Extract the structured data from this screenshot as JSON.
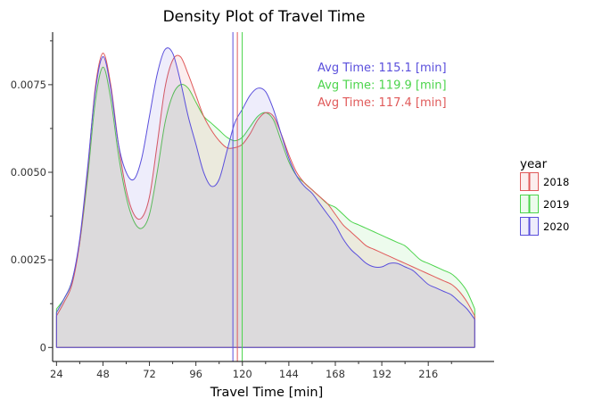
{
  "chart_data": {
    "type": "area",
    "title": "Density Plot of Travel Time",
    "xlabel": "Travel Time [min]",
    "ylabel": "",
    "xlim": [
      22,
      250
    ],
    "ylim": [
      -0.0004,
      0.009
    ],
    "x_ticks": [
      24,
      48,
      72,
      96,
      120,
      144,
      168,
      192,
      216
    ],
    "y_ticks": [
      0,
      0.0025,
      0.005,
      0.0075
    ],
    "y_tick_labels": [
      "0",
      "0.0025",
      "0.0050",
      "0.0075"
    ],
    "grid": false,
    "legend": {
      "title": "year",
      "placement": "right"
    },
    "series": [
      {
        "name": "2018",
        "color": "#e05a5a",
        "mean_line": 117.4,
        "annotation": "Avg Time: 117.4 [min]",
        "x": [
          24,
          28,
          32,
          36,
          40,
          44,
          48,
          52,
          56,
          60,
          64,
          68,
          72,
          76,
          80,
          84,
          88,
          92,
          96,
          100,
          104,
          108,
          112,
          116,
          120,
          124,
          128,
          132,
          136,
          140,
          144,
          148,
          152,
          156,
          160,
          164,
          168,
          172,
          176,
          180,
          184,
          188,
          192,
          196,
          200,
          204,
          208,
          212,
          216,
          220,
          224,
          228,
          232,
          236,
          240
        ],
        "y": [
          0.0009,
          0.0013,
          0.0018,
          0.003,
          0.005,
          0.0074,
          0.0084,
          0.0075,
          0.0058,
          0.0045,
          0.0038,
          0.0037,
          0.0043,
          0.0058,
          0.0074,
          0.0082,
          0.0083,
          0.0078,
          0.0072,
          0.0066,
          0.0062,
          0.0059,
          0.0057,
          0.0057,
          0.0058,
          0.0061,
          0.0065,
          0.0067,
          0.0066,
          0.0061,
          0.0055,
          0.005,
          0.0047,
          0.0045,
          0.0043,
          0.0041,
          0.0038,
          0.0035,
          0.0033,
          0.0031,
          0.0029,
          0.0028,
          0.0027,
          0.0026,
          0.0025,
          0.0024,
          0.0023,
          0.0022,
          0.0021,
          0.002,
          0.0019,
          0.0018,
          0.0016,
          0.0013,
          0.0009
        ]
      },
      {
        "name": "2019",
        "color": "#4cd44c",
        "mean_line": 119.9,
        "annotation": "Avg Time: 119.9 [min]",
        "x": [
          24,
          28,
          32,
          36,
          40,
          44,
          48,
          52,
          56,
          60,
          64,
          68,
          72,
          76,
          80,
          84,
          88,
          92,
          96,
          100,
          104,
          108,
          112,
          116,
          120,
          124,
          128,
          132,
          136,
          140,
          144,
          148,
          152,
          156,
          160,
          164,
          168,
          172,
          176,
          180,
          184,
          188,
          192,
          196,
          200,
          204,
          208,
          212,
          216,
          220,
          224,
          228,
          232,
          236,
          240
        ],
        "y": [
          0.0011,
          0.0014,
          0.0019,
          0.003,
          0.0048,
          0.007,
          0.008,
          0.0071,
          0.0055,
          0.0043,
          0.0036,
          0.0034,
          0.0038,
          0.005,
          0.0064,
          0.0072,
          0.0075,
          0.0074,
          0.007,
          0.0066,
          0.0064,
          0.0062,
          0.006,
          0.0059,
          0.006,
          0.0063,
          0.0066,
          0.0067,
          0.0065,
          0.0059,
          0.0053,
          0.0049,
          0.0047,
          0.0045,
          0.0043,
          0.0041,
          0.004,
          0.0038,
          0.0036,
          0.0035,
          0.0034,
          0.0033,
          0.0032,
          0.0031,
          0.003,
          0.0029,
          0.0027,
          0.0025,
          0.0024,
          0.0023,
          0.0022,
          0.0021,
          0.0019,
          0.0016,
          0.0011
        ]
      },
      {
        "name": "2020",
        "color": "#5a4fdc",
        "mean_line": 115.1,
        "annotation": "Avg Time: 115.1 [min]",
        "x": [
          24,
          28,
          32,
          36,
          40,
          44,
          48,
          52,
          56,
          60,
          64,
          68,
          72,
          76,
          80,
          84,
          88,
          92,
          96,
          100,
          104,
          108,
          112,
          116,
          120,
          124,
          128,
          132,
          136,
          140,
          144,
          148,
          152,
          156,
          160,
          164,
          168,
          172,
          176,
          180,
          184,
          188,
          192,
          196,
          200,
          204,
          208,
          212,
          216,
          220,
          224,
          228,
          232,
          236,
          240
        ],
        "y": [
          0.001,
          0.0014,
          0.0019,
          0.0031,
          0.0051,
          0.0073,
          0.0083,
          0.0074,
          0.0058,
          0.005,
          0.0048,
          0.0054,
          0.0066,
          0.0078,
          0.0085,
          0.0084,
          0.0076,
          0.0066,
          0.0058,
          0.005,
          0.0046,
          0.0048,
          0.0056,
          0.0064,
          0.0068,
          0.0072,
          0.0074,
          0.0073,
          0.0068,
          0.0061,
          0.0054,
          0.0049,
          0.0046,
          0.0044,
          0.0041,
          0.0038,
          0.0035,
          0.0031,
          0.0028,
          0.0026,
          0.0024,
          0.0023,
          0.0023,
          0.0024,
          0.0024,
          0.0023,
          0.0022,
          0.002,
          0.0018,
          0.0017,
          0.0016,
          0.0015,
          0.0013,
          0.0011,
          0.0008
        ]
      }
    ]
  }
}
